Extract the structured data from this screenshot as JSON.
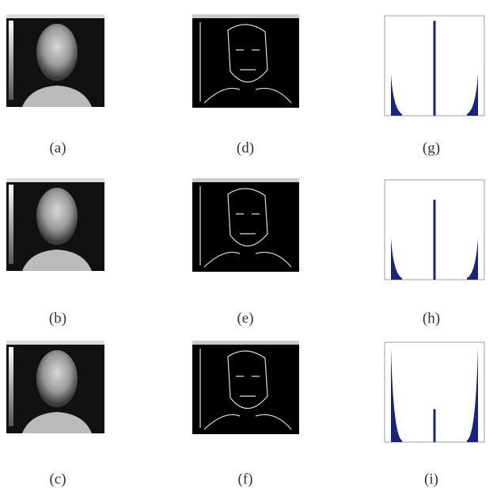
{
  "figure": {
    "rows": [
      [
        "(a)",
        "(d)",
        "(g)"
      ],
      [
        "(b)",
        "(e)",
        "(h)"
      ],
      [
        "(c)",
        "(f)",
        "(i)"
      ]
    ]
  }
}
